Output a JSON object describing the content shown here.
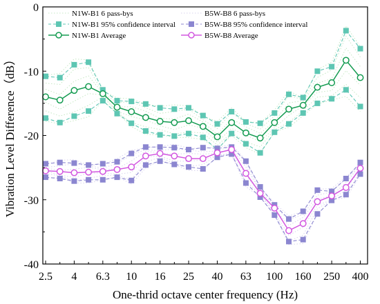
{
  "chart_data": {
    "type": "line",
    "title": "",
    "xlabel": "One-thrid octave center frequency (Hz)",
    "ylabel": "Vibration Level Difference（dB）",
    "ylim": [
      -40,
      0
    ],
    "yticks": [
      0,
      -10,
      -20,
      -30,
      -40
    ],
    "xscale": "one-third-octave-bands",
    "x": [
      "2.5",
      "3.15",
      "4",
      "5",
      "6.3",
      "8",
      "10",
      "12.5",
      "16",
      "20",
      "25",
      "31.5",
      "40",
      "50",
      "63",
      "80",
      "100",
      "125",
      "160",
      "200",
      "250",
      "315",
      "400"
    ],
    "xtick_labels": [
      "2.5",
      "4",
      "6.3",
      "10",
      "16",
      "25",
      "40",
      "63",
      "100",
      "160",
      "250",
      "400"
    ],
    "legend_position": "top",
    "grid": false,
    "series": [
      {
        "name": "N1W-B1 Average",
        "color": "#139b50",
        "marker": "open-circle",
        "values": [
          -14.0,
          -14.5,
          -13.0,
          -12.4,
          -13.5,
          -15.6,
          -16.3,
          -17.2,
          -17.8,
          -18.0,
          -17.7,
          -18.6,
          -20.2,
          -18.0,
          -19.6,
          -20.4,
          -18.0,
          -15.9,
          -15.3,
          -12.5,
          -11.8,
          -8.3,
          -11.0
        ]
      },
      {
        "name": "N1W-B1 95% confidence interval",
        "color": "#5ec6b3",
        "marker": "filled-square",
        "upper": [
          -10.8,
          -11.0,
          -9.0,
          -8.6,
          -12.9,
          -14.6,
          -14.7,
          -15.1,
          -15.7,
          -15.9,
          -15.7,
          -16.9,
          -18.2,
          -16.3,
          -17.9,
          -18.1,
          -16.5,
          -13.6,
          -14.1,
          -10.0,
          -9.3,
          -3.7,
          -6.5
        ],
        "lower": [
          -17.3,
          -18.0,
          -17.0,
          -16.2,
          -14.6,
          -16.6,
          -18.1,
          -19.3,
          -19.9,
          -20.1,
          -19.7,
          -20.3,
          -22.2,
          -19.7,
          -21.3,
          -22.7,
          -19.5,
          -18.2,
          -16.5,
          -15.0,
          -14.3,
          -12.9,
          -15.5
        ]
      },
      {
        "name": "N1W-B1 6 pass-bys",
        "color": "#c6e8c4",
        "line": "dotted"
      },
      {
        "name": "B5W-B8 Average",
        "color": "#d257e0",
        "marker": "open-circle",
        "values": [
          -25.5,
          -25.6,
          -25.8,
          -25.7,
          -25.6,
          -25.3,
          -24.9,
          -23.2,
          -22.8,
          -23.2,
          -23.6,
          -23.6,
          -22.7,
          -22.2,
          -25.9,
          -29.0,
          -31.3,
          -34.8,
          -33.7,
          -30.3,
          -29.4,
          -28.1,
          -25.1
        ]
      },
      {
        "name": "B5W-B8 95% confidence interval",
        "color": "#8b86d0",
        "marker": "filled-square",
        "upper": [
          -24.4,
          -24.2,
          -24.3,
          -24.6,
          -24.4,
          -24.1,
          -22.8,
          -21.8,
          -21.8,
          -21.9,
          -22.2,
          -21.9,
          -22.0,
          -21.8,
          -24.0,
          -28.0,
          -30.8,
          -33.0,
          -31.8,
          -28.5,
          -28.7,
          -26.7,
          -24.2
        ],
        "lower": [
          -26.5,
          -26.7,
          -27.1,
          -26.9,
          -26.9,
          -26.5,
          -27.0,
          -24.6,
          -24.0,
          -24.5,
          -24.9,
          -25.2,
          -23.4,
          -22.9,
          -27.4,
          -29.6,
          -32.4,
          -36.5,
          -36.2,
          -32.2,
          -30.1,
          -29.2,
          -26.0
        ]
      },
      {
        "name": "B5W-B8 6 pass-bys",
        "color": "#d8d2ee",
        "line": "dotted"
      }
    ]
  }
}
